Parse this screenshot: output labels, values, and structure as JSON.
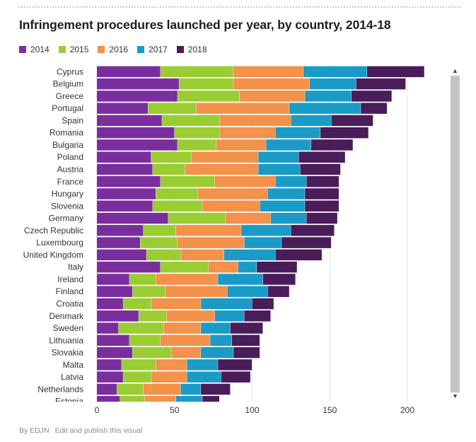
{
  "title": "Infringement procedures launched per year, by country, 2014-18",
  "footer": {
    "credit": "By EDJN",
    "link": "Edit and publish this visual"
  },
  "colors": {
    "2014": "#7a2e9e",
    "2015": "#9acd32",
    "2016": "#f4914a",
    "2017": "#1a9bc7",
    "2018": "#4a1c5a"
  },
  "scrollbar": {
    "up_icon": "chevron-up-icon",
    "down_icon": "chevron-down-icon"
  },
  "chart_data": {
    "type": "bar",
    "orientation": "horizontal",
    "stacked": true,
    "categories": [
      "Cyprus",
      "Belgium",
      "Greece",
      "Portugal",
      "Spain",
      "Romania",
      "Bulgaria",
      "Poland",
      "Austria",
      "France",
      "Hungary",
      "Slovenia",
      "Germany",
      "Czech Republic",
      "Luxembourg",
      "United Kingdom",
      "Italy",
      "Ireland",
      "Finland",
      "Croatia",
      "Denmark",
      "Sweden",
      "Lithuania",
      "Slovakia",
      "Malta",
      "Latvia",
      "Netherlands",
      "Estonia"
    ],
    "series": [
      {
        "name": "2014",
        "values": [
          41,
          53,
          52,
          33,
          42,
          50,
          52,
          35,
          36,
          41,
          38,
          36,
          46,
          30,
          28,
          32,
          41,
          21,
          23,
          17,
          27,
          14,
          21,
          23,
          16,
          17,
          13,
          15
        ]
      },
      {
        "name": "2015",
        "values": [
          47,
          35,
          40,
          31,
          37,
          29,
          25,
          26,
          21,
          35,
          27,
          32,
          37,
          21,
          24,
          22,
          31,
          17,
          21,
          18,
          18,
          29,
          20,
          25,
          22,
          18,
          17,
          16
        ]
      },
      {
        "name": "2016",
        "values": [
          45,
          49,
          42,
          60,
          46,
          36,
          32,
          43,
          47,
          39,
          45,
          37,
          29,
          42,
          43,
          28,
          19,
          40,
          40,
          32,
          31,
          24,
          32,
          19,
          20,
          23,
          24,
          20
        ]
      },
      {
        "name": "2017",
        "values": [
          41,
          30,
          30,
          46,
          26,
          29,
          29,
          26,
          27,
          20,
          24,
          29,
          23,
          32,
          24,
          33,
          12,
          29,
          26,
          33,
          19,
          19,
          14,
          21,
          20,
          22,
          13,
          17
        ]
      },
      {
        "name": "2018",
        "values": [
          37,
          32,
          26,
          17,
          27,
          31,
          27,
          30,
          26,
          21,
          22,
          22,
          20,
          28,
          32,
          30,
          26,
          21,
          14,
          14,
          17,
          21,
          18,
          17,
          22,
          19,
          19,
          11
        ]
      }
    ],
    "xlim": [
      0,
      200
    ],
    "xticks": [
      0,
      50,
      100,
      150,
      200
    ],
    "legend": "top-left",
    "grid": true
  }
}
